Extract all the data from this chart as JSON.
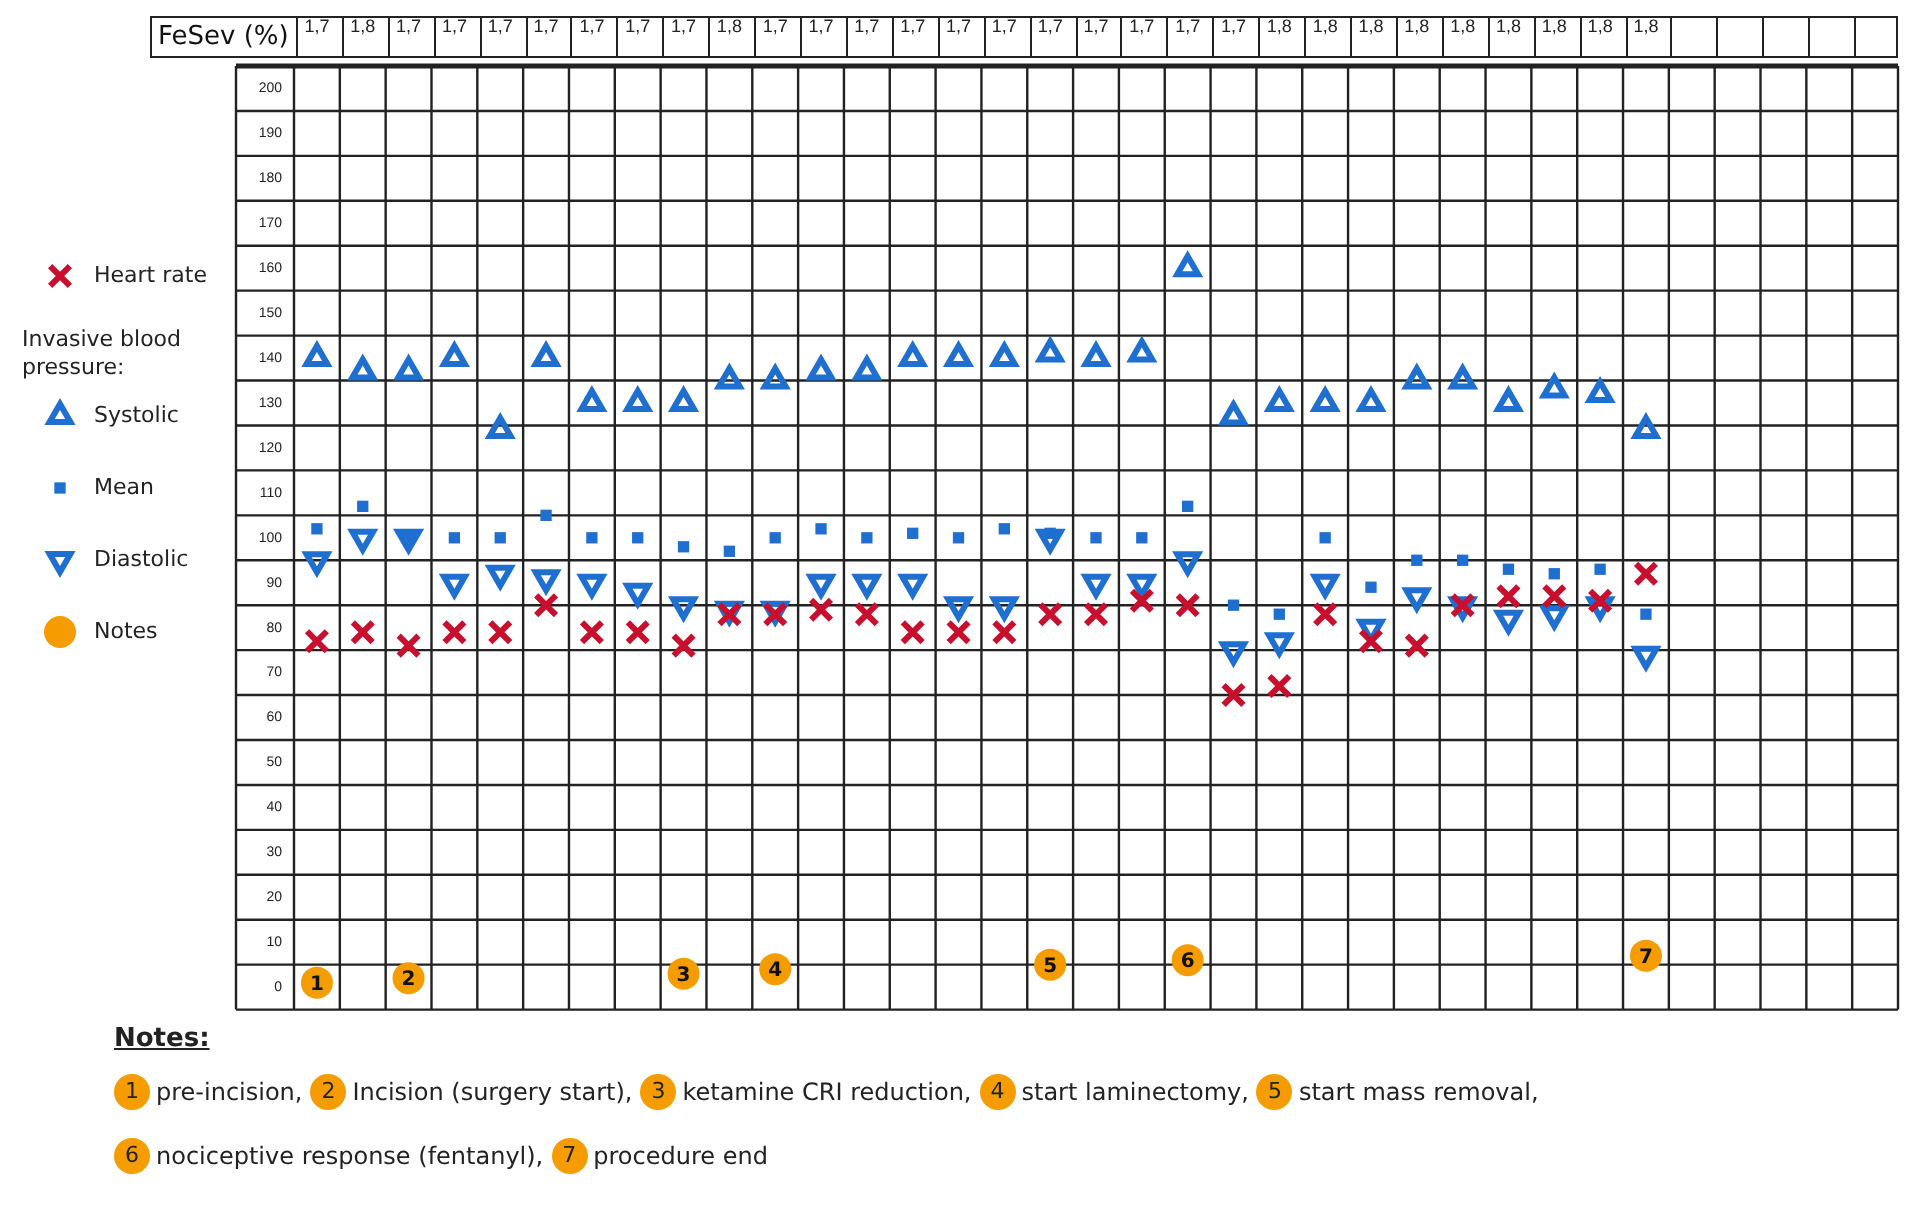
{
  "chart_data": {
    "type": "scatter",
    "xlabel": "FeSev (%)",
    "legend_title": "Invasive blood pressure:",
    "legend": "left",
    "grid": true,
    "categories": [
      "1,7",
      "1,8",
      "1,7",
      "1,7",
      "1,7",
      "1,7",
      "1,7",
      "1,7",
      "1,7",
      "1,8",
      "1,7",
      "1,7",
      "1,7",
      "1,7",
      "1,7",
      "1,7",
      "1,7",
      "1,7",
      "1,7",
      "1,7",
      "1,7",
      "1,8",
      "1,8",
      "1,8",
      "1,8",
      "1,8",
      "1,8",
      "1,8",
      "1,8",
      "1,8",
      null,
      null,
      null,
      null,
      null
    ],
    "ylim": [
      -5,
      205
    ],
    "yticks": [
      0,
      10,
      20,
      30,
      40,
      50,
      60,
      70,
      80,
      90,
      100,
      110,
      120,
      130,
      140,
      150,
      160,
      170,
      180,
      190,
      200
    ],
    "series": [
      {
        "name": "Heart rate",
        "color": "#c8102e",
        "marker": "cross",
        "values": [
          77,
          79,
          76,
          79,
          79,
          85,
          79,
          79,
          76,
          83,
          83,
          84,
          83,
          79,
          79,
          79,
          83,
          83,
          86,
          85,
          65,
          67,
          83,
          77,
          76,
          85,
          87,
          87,
          86,
          92,
          null,
          null,
          null,
          null,
          null
        ]
      },
      {
        "name": "Systolic",
        "color": "#1f6fd0",
        "marker": "triangle",
        "values": [
          140,
          137,
          137,
          140,
          124,
          140,
          130,
          130,
          130,
          135,
          135,
          137,
          137,
          140,
          140,
          140,
          141,
          140,
          141,
          160,
          127,
          130,
          130,
          130,
          135,
          135,
          130,
          133,
          132,
          124,
          null,
          null,
          null,
          null,
          null
        ]
      },
      {
        "name": "Mean",
        "color": "#1f6fd0",
        "marker": "square",
        "values": [
          102,
          107,
          100,
          100,
          100,
          105,
          100,
          100,
          98,
          97,
          100,
          102,
          100,
          101,
          100,
          102,
          101,
          100,
          100,
          107,
          85,
          83,
          100,
          89,
          95,
          95,
          93,
          92,
          93,
          83,
          null,
          null,
          null,
          null,
          null
        ]
      },
      {
        "name": "Diastolic",
        "color": "#1f6fd0",
        "marker": "triangle-down",
        "values": [
          95,
          100,
          100,
          90,
          92,
          91,
          90,
          88,
          85,
          84,
          84,
          90,
          90,
          90,
          85,
          85,
          100,
          90,
          90,
          95,
          75,
          77,
          90,
          80,
          87,
          85,
          82,
          83,
          85,
          74,
          null,
          null,
          null,
          null,
          null
        ]
      },
      {
        "name": "Notes",
        "color": "#f59c00",
        "marker": "circle",
        "values": [
          1,
          null,
          2,
          null,
          null,
          null,
          null,
          null,
          3,
          null,
          4,
          null,
          null,
          null,
          null,
          null,
          5,
          null,
          null,
          6,
          null,
          null,
          null,
          null,
          null,
          null,
          null,
          null,
          null,
          7,
          null,
          null,
          null,
          null,
          null
        ],
        "value_labels": [
          "1",
          null,
          "2",
          null,
          null,
          null,
          null,
          null,
          "3",
          null,
          "4",
          null,
          null,
          null,
          null,
          null,
          "5",
          null,
          null,
          "6",
          null,
          null,
          null,
          null,
          null,
          null,
          null,
          null,
          null,
          "7",
          null,
          null,
          null,
          null,
          null
        ]
      }
    ],
    "annotations": [
      "Notes:",
      "pre-incision,",
      "Incision (surgery start),",
      "ketamine CRI reduction,",
      "start laminectomy,",
      "start mass removal,",
      "nociceptive response (fentanyl),",
      "procedure end"
    ]
  }
}
